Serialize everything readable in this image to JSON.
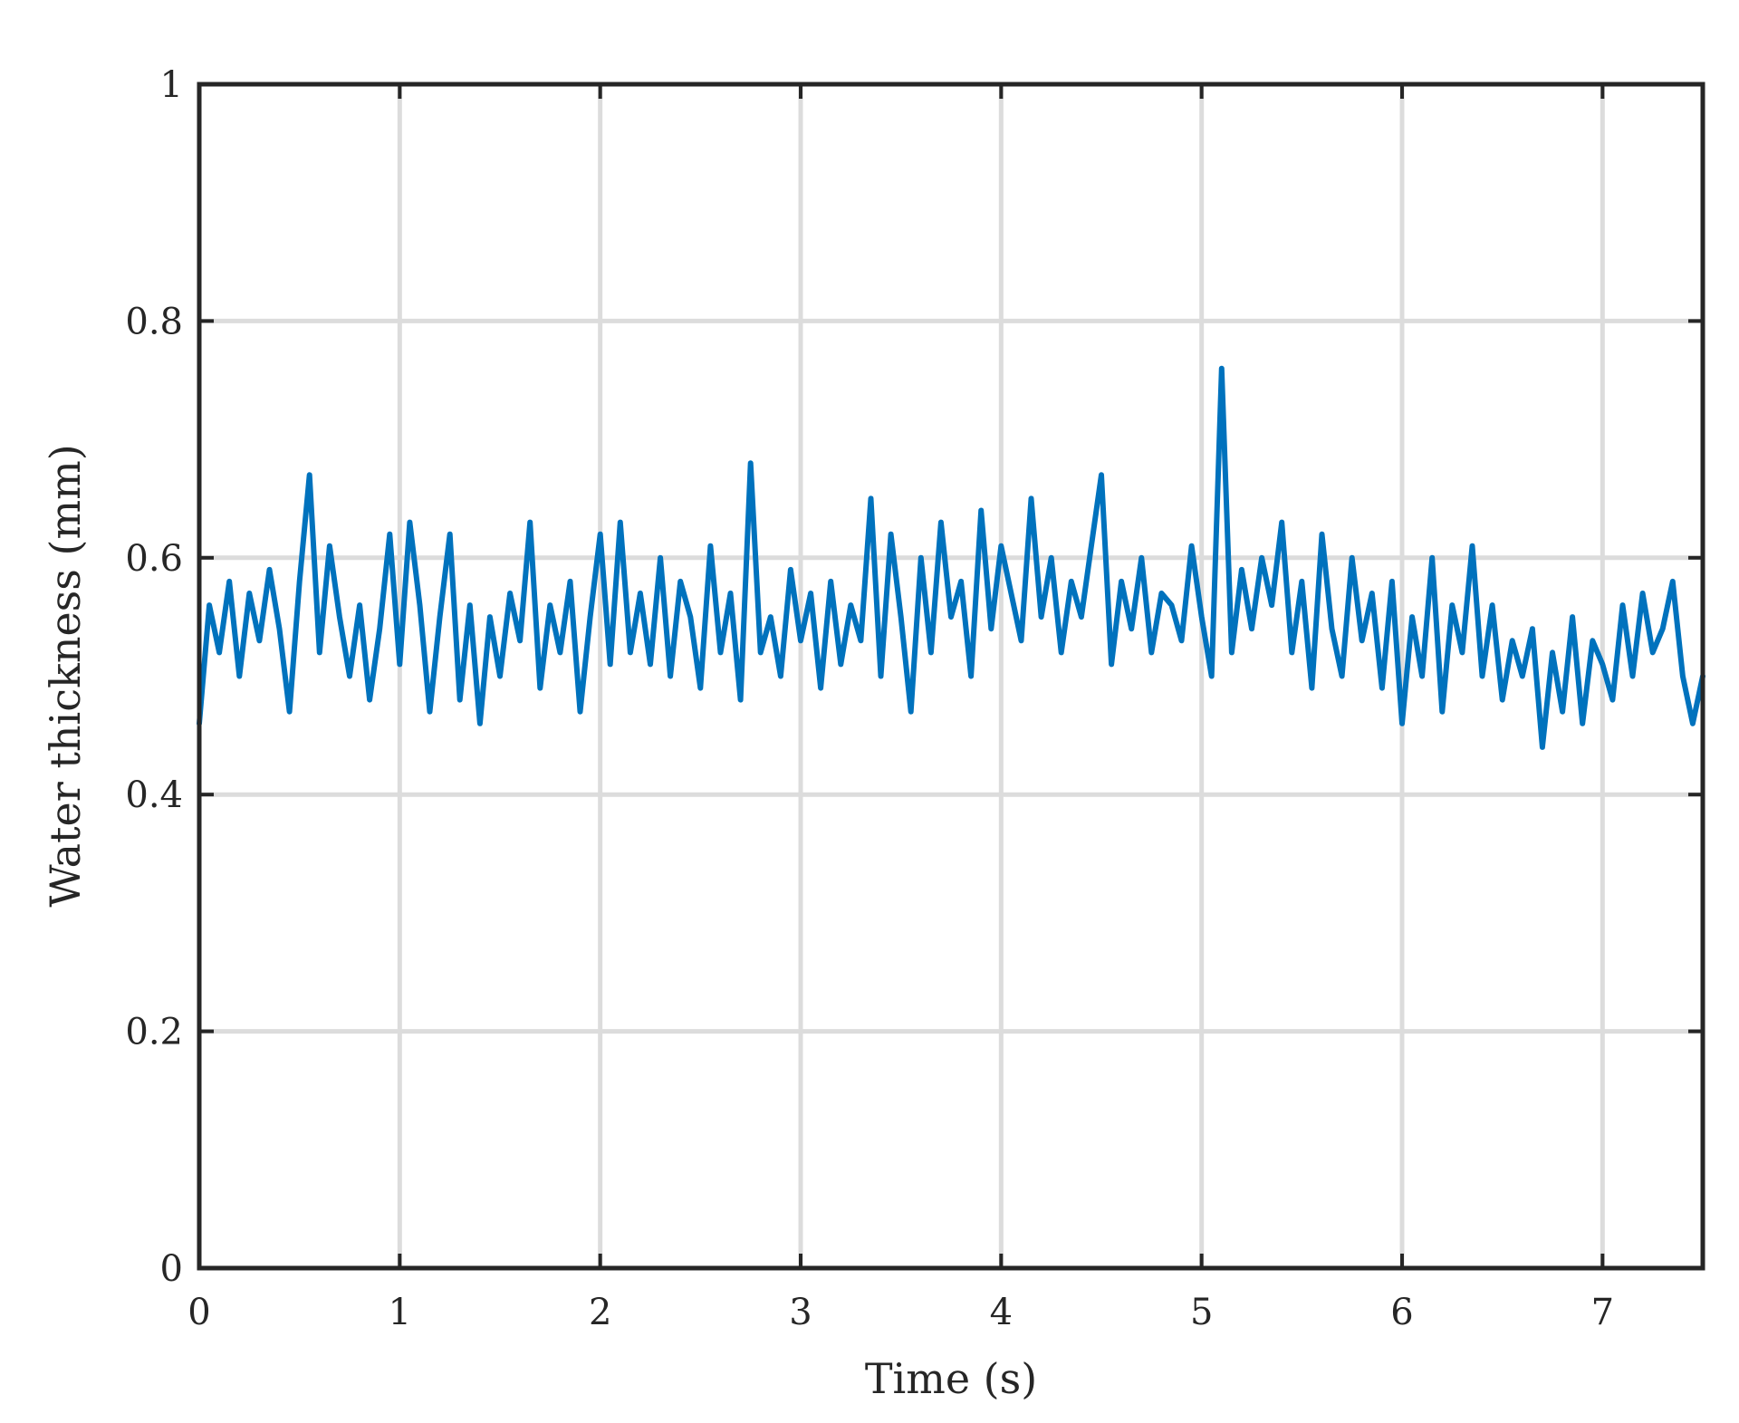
{
  "chart_data": {
    "type": "line",
    "xlabel": "Time (s)",
    "ylabel": "Water thickness (mm)",
    "xlim": [
      0,
      7.5
    ],
    "ylim": [
      0,
      1
    ],
    "xticks": [
      0,
      1,
      2,
      3,
      4,
      5,
      6,
      7
    ],
    "yticks": [
      0,
      0.2,
      0.4,
      0.6,
      0.8,
      1
    ],
    "x_tick_labels": [
      "0",
      "1",
      "2",
      "3",
      "4",
      "5",
      "6",
      "7"
    ],
    "y_tick_labels": [
      "0",
      "0.2",
      "0.4",
      "0.6",
      "0.8",
      "1"
    ],
    "grid": true,
    "series": [
      {
        "color": "#0072BD",
        "x": [
          0,
          0.05,
          0.1,
          0.15,
          0.2,
          0.25,
          0.3,
          0.35,
          0.4,
          0.45,
          0.5,
          0.55,
          0.6,
          0.65,
          0.7,
          0.75,
          0.8,
          0.85,
          0.9,
          0.95,
          1,
          1.05,
          1.1,
          1.15,
          1.2,
          1.25,
          1.3,
          1.35,
          1.4,
          1.45,
          1.5,
          1.55,
          1.6,
          1.65,
          1.7,
          1.75,
          1.8,
          1.85,
          1.9,
          1.95,
          2,
          2.05,
          2.1,
          2.15,
          2.2,
          2.25,
          2.3,
          2.35,
          2.4,
          2.45,
          2.5,
          2.55,
          2.6,
          2.65,
          2.7,
          2.75,
          2.8,
          2.85,
          2.9,
          2.95,
          3,
          3.05,
          3.1,
          3.15,
          3.2,
          3.25,
          3.3,
          3.35,
          3.4,
          3.45,
          3.5,
          3.55,
          3.6,
          3.65,
          3.7,
          3.75,
          3.8,
          3.85,
          3.9,
          3.95,
          4,
          4.05,
          4.1,
          4.15,
          4.2,
          4.25,
          4.3,
          4.35,
          4.4,
          4.45,
          4.5,
          4.55,
          4.6,
          4.65,
          4.7,
          4.75,
          4.8,
          4.85,
          4.9,
          4.95,
          5,
          5.05,
          5.1,
          5.15,
          5.2,
          5.25,
          5.3,
          5.35,
          5.4,
          5.45,
          5.5,
          5.55,
          5.6,
          5.65,
          5.7,
          5.75,
          5.8,
          5.85,
          5.9,
          5.95,
          6,
          6.05,
          6.1,
          6.15,
          6.2,
          6.25,
          6.3,
          6.35,
          6.4,
          6.45,
          6.5,
          6.55,
          6.6,
          6.65,
          6.7,
          6.75,
          6.8,
          6.85,
          6.9,
          6.95,
          7,
          7.05,
          7.1,
          7.15,
          7.2,
          7.25,
          7.3,
          7.35,
          7.4,
          7.45,
          7.5
        ],
        "y": [
          0.46,
          0.56,
          0.52,
          0.58,
          0.5,
          0.57,
          0.53,
          0.59,
          0.54,
          0.47,
          0.58,
          0.67,
          0.52,
          0.61,
          0.55,
          0.5,
          0.56,
          0.48,
          0.54,
          0.62,
          0.51,
          0.63,
          0.56,
          0.47,
          0.55,
          0.62,
          0.48,
          0.56,
          0.46,
          0.55,
          0.5,
          0.57,
          0.53,
          0.63,
          0.49,
          0.56,
          0.52,
          0.58,
          0.47,
          0.55,
          0.62,
          0.51,
          0.63,
          0.52,
          0.57,
          0.51,
          0.6,
          0.5,
          0.58,
          0.55,
          0.49,
          0.61,
          0.52,
          0.57,
          0.48,
          0.68,
          0.52,
          0.55,
          0.5,
          0.59,
          0.53,
          0.57,
          0.49,
          0.58,
          0.51,
          0.56,
          0.53,
          0.65,
          0.5,
          0.62,
          0.55,
          0.47,
          0.6,
          0.52,
          0.63,
          0.55,
          0.58,
          0.5,
          0.64,
          0.54,
          0.61,
          0.57,
          0.53,
          0.65,
          0.55,
          0.6,
          0.52,
          0.58,
          0.55,
          0.61,
          0.67,
          0.51,
          0.58,
          0.54,
          0.6,
          0.52,
          0.57,
          0.56,
          0.53,
          0.61,
          0.55,
          0.5,
          0.76,
          0.52,
          0.59,
          0.54,
          0.6,
          0.56,
          0.63,
          0.52,
          0.58,
          0.49,
          0.62,
          0.54,
          0.5,
          0.6,
          0.53,
          0.57,
          0.49,
          0.58,
          0.46,
          0.55,
          0.5,
          0.6,
          0.47,
          0.56,
          0.52,
          0.61,
          0.5,
          0.56,
          0.48,
          0.53,
          0.5,
          0.54,
          0.44,
          0.52,
          0.47,
          0.55,
          0.46,
          0.53,
          0.51,
          0.48,
          0.56,
          0.5,
          0.57,
          0.52,
          0.54,
          0.58,
          0.5,
          0.46,
          0.5
        ]
      }
    ]
  }
}
